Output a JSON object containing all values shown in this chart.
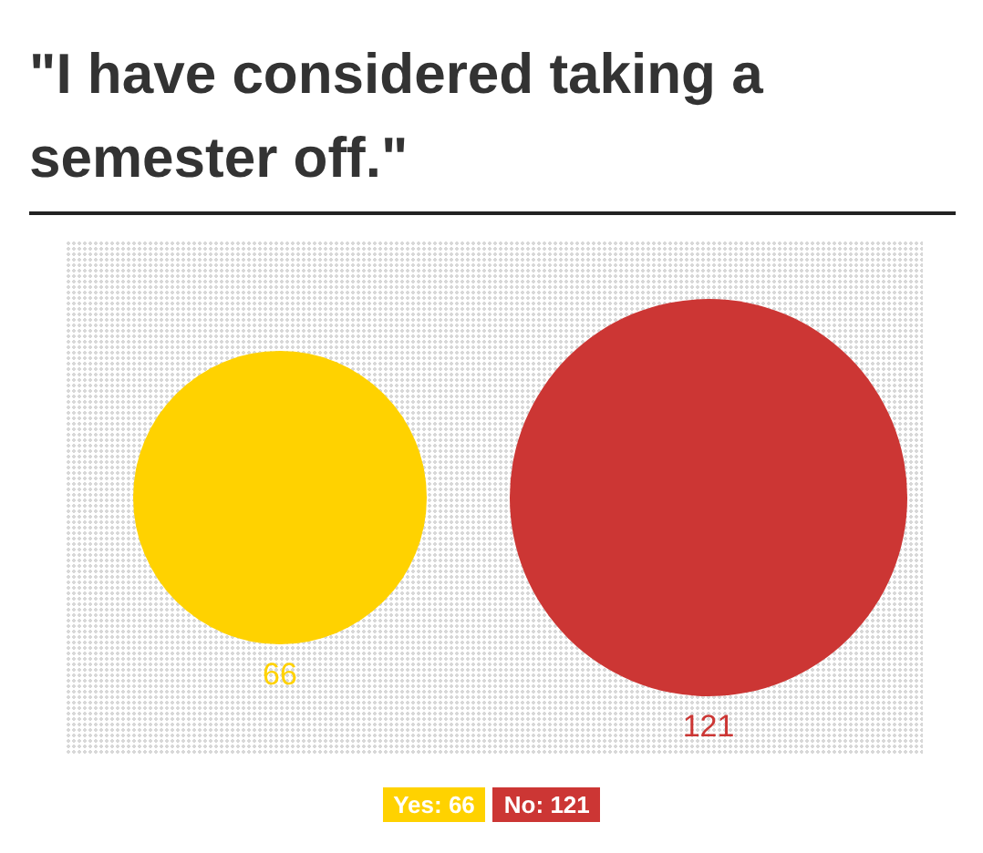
{
  "chart_data": {
    "type": "other",
    "title": "\"I have considered taking a semester off.\"",
    "categories": [
      "Yes: 66",
      "No: 121"
    ],
    "values": [
      66,
      121
    ],
    "value_labels": [
      "66",
      "121"
    ],
    "colors": [
      "#ffd200",
      "#cc3634"
    ]
  }
}
